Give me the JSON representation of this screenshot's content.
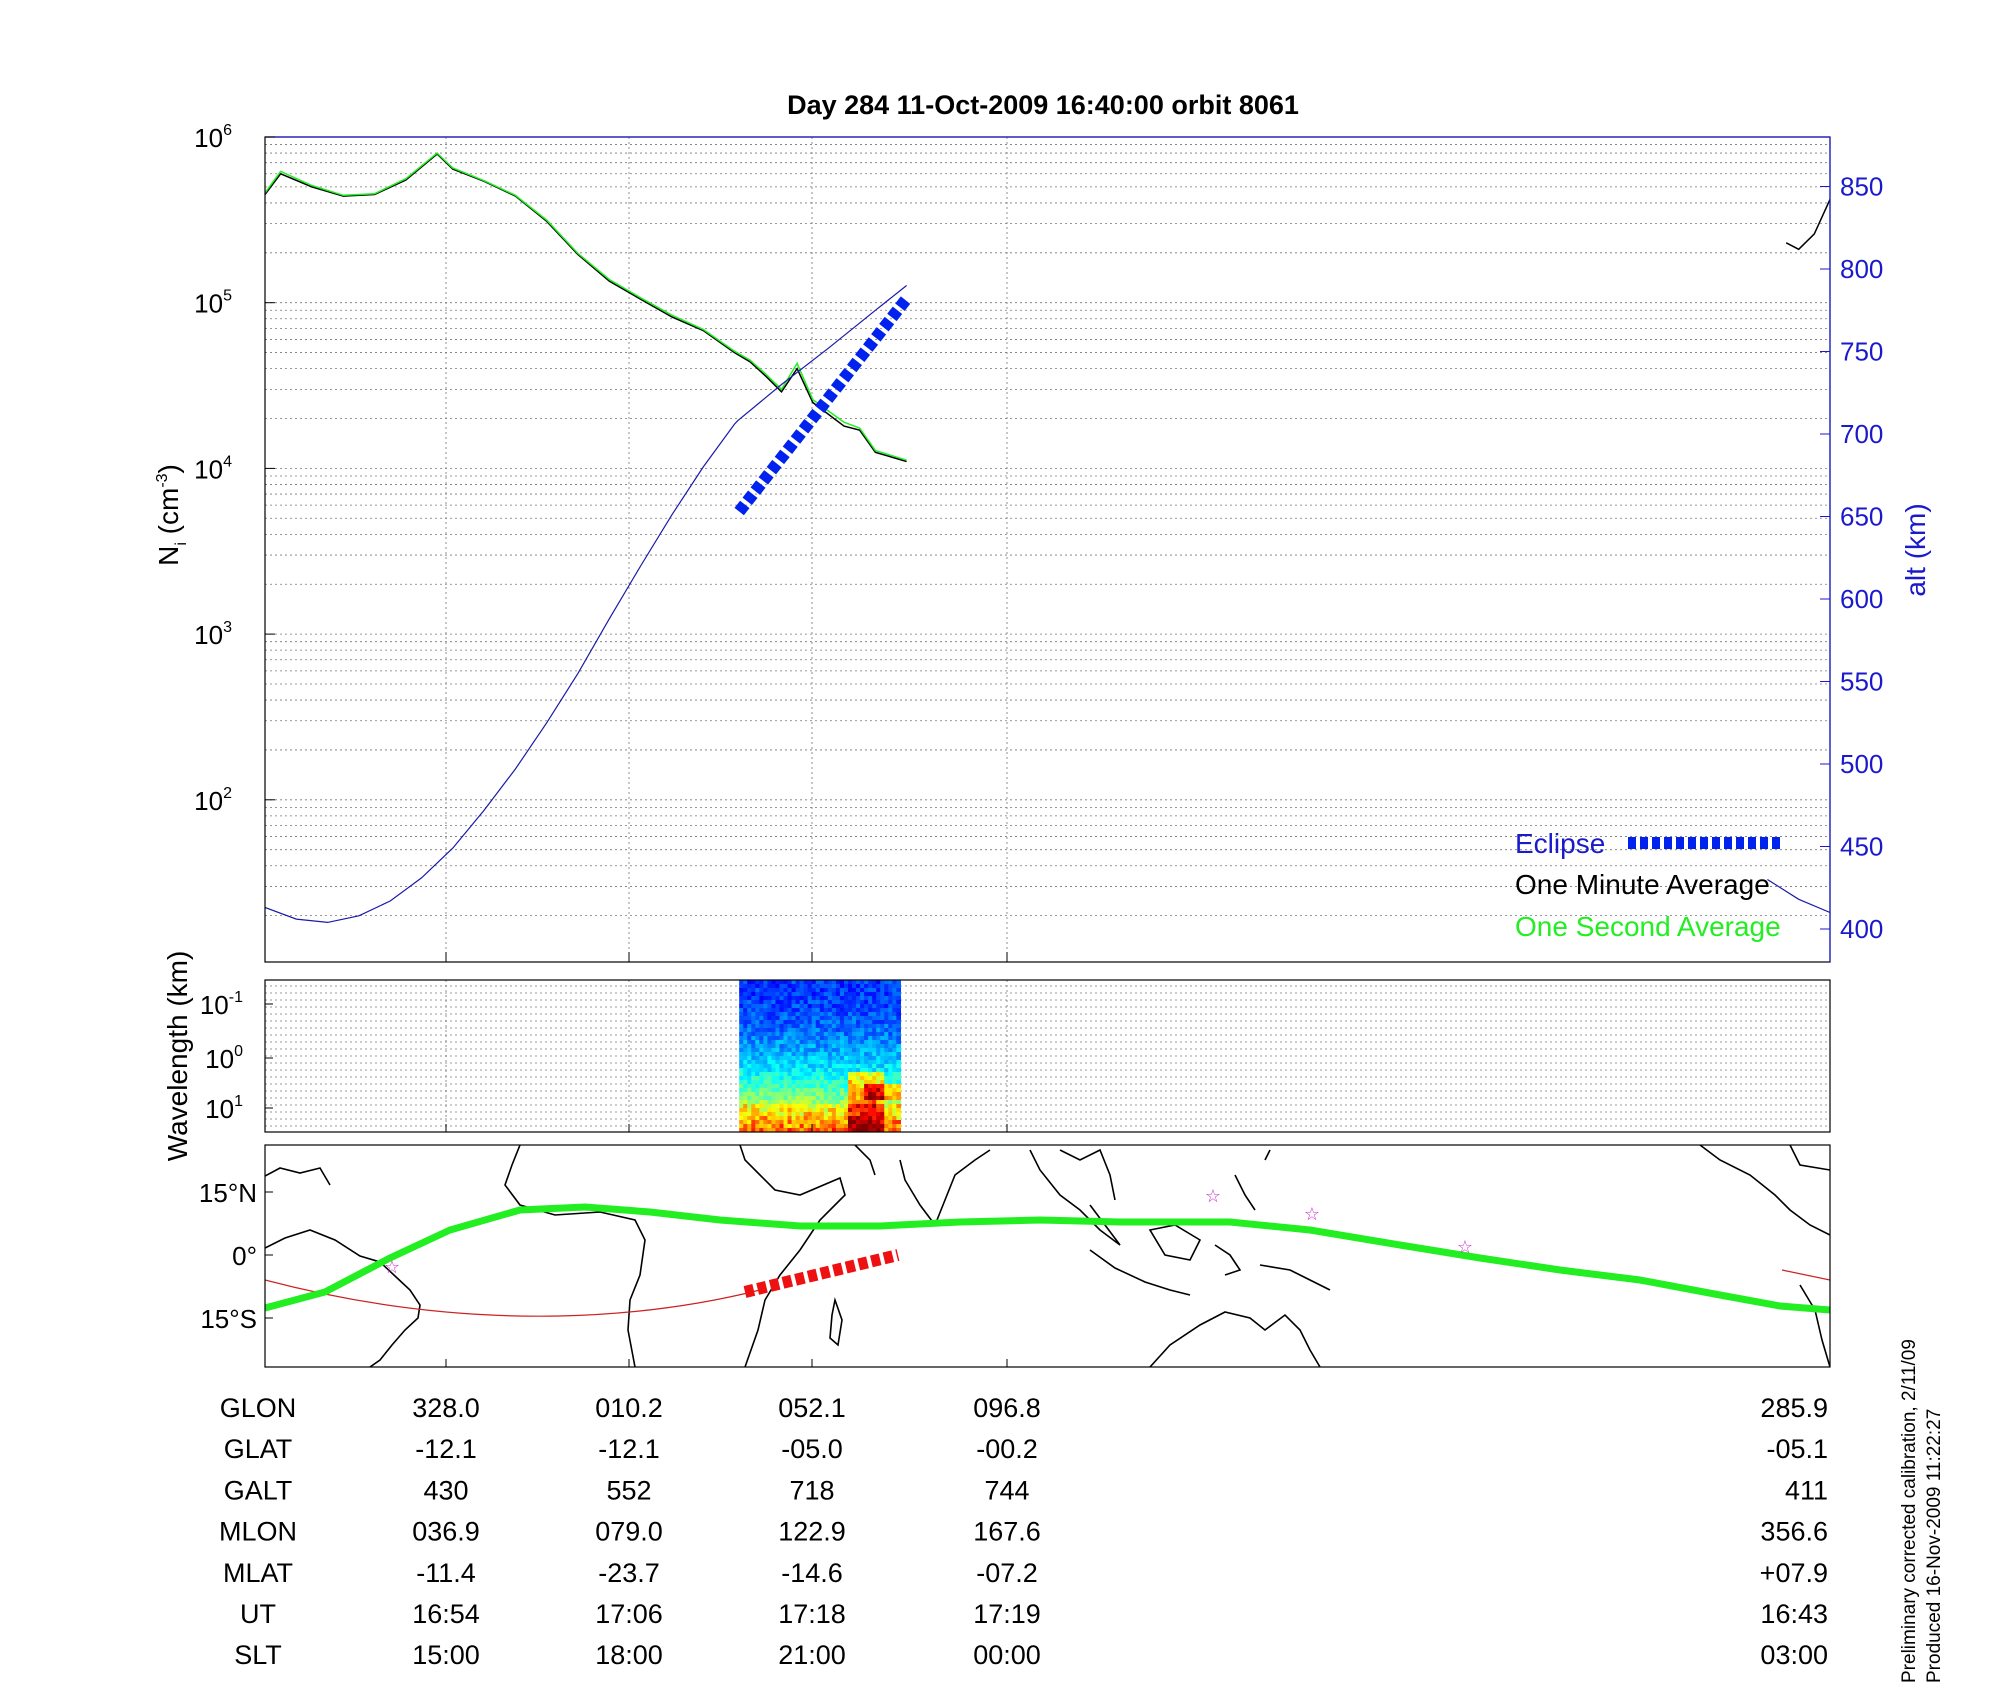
{
  "chart_data": [
    {
      "type": "line",
      "title": "Day 284  11-Oct-2009 16:40:00   orbit 8061",
      "ylabel": "N",
      "ylabel_sub": "i",
      "ylabel_unit": "(cm",
      "ylabel_unit_exp": "-3",
      "ylabel_unit_close": ")",
      "y_scale": "log",
      "ylim": [
        1,
        1000000
      ],
      "yticks": [
        {
          "base": "10",
          "exp": "2",
          "value": 100
        },
        {
          "base": "10",
          "exp": "3",
          "value": 1000
        },
        {
          "base": "10",
          "exp": "4",
          "value": 10000
        },
        {
          "base": "10",
          "exp": "5",
          "value": 100000
        },
        {
          "base": "10",
          "exp": "6",
          "value": 1000000
        }
      ],
      "y2label": "alt (km)",
      "y2lim": [
        380,
        880
      ],
      "y2ticks": [
        400,
        450,
        500,
        550,
        600,
        650,
        700,
        750,
        800,
        850
      ],
      "x_categories": [
        "15:00",
        "18:00",
        "21:00",
        "00:00",
        "03:00"
      ],
      "grid": true,
      "legend_position": "bottom-right",
      "series": [
        {
          "name": "One Minute Average",
          "color": "#000000",
          "x": [
            0.0,
            0.01,
            0.03,
            0.05,
            0.07,
            0.09,
            0.11,
            0.12,
            0.14,
            0.16,
            0.18,
            0.2,
            0.22,
            0.24,
            0.26,
            0.28,
            0.3,
            0.31,
            0.32,
            0.33,
            0.34,
            0.35,
            0.37,
            0.38,
            0.39,
            0.41
          ],
          "values": [
            450000,
            600000,
            500000,
            440000,
            450000,
            550000,
            790000,
            640000,
            540000,
            440000,
            310000,
            195000,
            135000,
            105000,
            82000,
            68000,
            50000,
            44000,
            36000,
            29000,
            40000,
            25000,
            18000,
            17000,
            12500,
            11000
          ]
        },
        {
          "name": "One Minute Average (end segment)",
          "color": "#000000",
          "x": [
            0.972,
            0.98,
            0.99,
            1.0
          ],
          "values": [
            230000,
            210000,
            260000,
            420000
          ]
        },
        {
          "name": "One Second Average",
          "color": "#22ee22",
          "x": [
            0.0,
            0.01,
            0.03,
            0.05,
            0.07,
            0.09,
            0.11,
            0.12,
            0.14,
            0.16,
            0.18,
            0.2,
            0.22,
            0.24,
            0.26,
            0.28,
            0.3,
            0.31,
            0.32,
            0.33,
            0.34,
            0.35,
            0.37,
            0.38,
            0.39,
            0.41
          ],
          "values": [
            460000,
            620000,
            510000,
            445000,
            455000,
            560000,
            800000,
            650000,
            545000,
            445000,
            315000,
            198000,
            138000,
            107000,
            84000,
            69000,
            51000,
            45000,
            37000,
            30000,
            43000,
            26000,
            19000,
            17500,
            12800,
            11200
          ]
        },
        {
          "name": "alt",
          "color": "#1a1aaa",
          "axis": "right",
          "x": [
            0.0,
            0.02,
            0.04,
            0.06,
            0.08,
            0.1,
            0.12,
            0.14,
            0.16,
            0.18,
            0.2,
            0.22,
            0.24,
            0.26,
            0.28,
            0.3,
            0.302,
            0.33,
            0.36,
            0.39,
            0.41
          ],
          "values": [
            413,
            406,
            404,
            408,
            417,
            431,
            449,
            472,
            497,
            525,
            555,
            588,
            620,
            651,
            680,
            706,
            708,
            730,
            752,
            775,
            790
          ]
        },
        {
          "name": "alt (end segment)",
          "color": "#1a1aaa",
          "axis": "right",
          "x": [
            0.96,
            0.98,
            1.0
          ],
          "values": [
            430,
            418,
            410
          ]
        },
        {
          "name": "Eclipse",
          "color": "#0022ee",
          "axis": "right",
          "style": "dashed-thick",
          "x": [
            0.303,
            0.41
          ],
          "values": [
            653,
            782
          ]
        }
      ]
    },
    {
      "type": "heatmap",
      "ylabel": "Wavelength (km)",
      "y_scale": "log",
      "yticks": [
        {
          "base": "10",
          "exp": "-1"
        },
        {
          "base": "10",
          "exp": "0"
        },
        {
          "base": "10",
          "exp": "1"
        }
      ],
      "x_range": [
        0.303,
        0.406
      ],
      "colormap": "jet"
    },
    {
      "type": "map",
      "yticks": [
        "15°N",
        "0°",
        "15°S"
      ],
      "latitude_range": [
        -22,
        25
      ],
      "footprint_color": "#22ee22",
      "orbit_color": "#cc2222",
      "eclipse_color": "#ee1111"
    }
  ],
  "table": {
    "row_labels": [
      "GLON",
      "GLAT",
      "GALT",
      "MLON",
      "MLAT",
      "UT",
      "SLT"
    ],
    "columns": [
      [
        "328.0",
        "-12.1",
        "430",
        "036.9",
        "-11.4",
        "16:54",
        "15:00"
      ],
      [
        "010.2",
        "-12.1",
        "552",
        "079.0",
        "-23.7",
        "17:06",
        "18:00"
      ],
      [
        "052.1",
        "-05.0",
        "718",
        "122.9",
        "-14.6",
        "17:18",
        "21:00"
      ],
      [
        "096.8",
        "-00.2",
        "744",
        "167.6",
        "-07.2",
        "17:19",
        "00:00"
      ],
      [
        "285.9",
        "-05.1",
        "411",
        "356.6",
        "+07.9",
        "16:43",
        "03:00"
      ]
    ]
  },
  "legend": {
    "eclipse": "Eclipse",
    "one_minute": "One Minute Average",
    "one_second": "One Second Average"
  },
  "footnote": {
    "line1": "Preliminary corrected calibration, 2/11/09",
    "line2": "Produced 16-Nov-2009 11:22:27"
  },
  "colors": {
    "alt_axis": "#1a1acc",
    "frame": "#000000"
  }
}
